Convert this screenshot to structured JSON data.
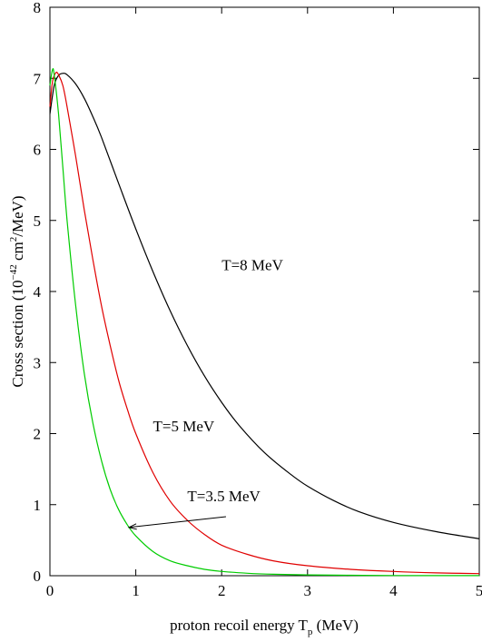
{
  "chart_data": {
    "type": "line",
    "xlabel": "proton recoil energy T",
    "xlabel_sub": "p",
    "xlabel_unit": "(MeV)",
    "ylabel": "Cross section (10",
    "ylabel_exp1": "−42",
    "ylabel_mid": " cm",
    "ylabel_exp2": "2",
    "ylabel_unit": "/MeV)",
    "xlim": [
      0,
      5
    ],
    "ylim": [
      0,
      8
    ],
    "xticks": [
      "0",
      "1",
      "2",
      "3",
      "4",
      "5"
    ],
    "yticks": [
      "0",
      "1",
      "2",
      "3",
      "4",
      "5",
      "6",
      "7",
      "8"
    ],
    "grid": false,
    "annotations": [
      {
        "text": "T=8 MeV",
        "series": 0
      },
      {
        "text": "T=5 MeV",
        "series": 1
      },
      {
        "text": "T=3.5 MeV",
        "series": 2,
        "arrow_to": [
          0.92,
          0.68
        ]
      }
    ],
    "series": [
      {
        "color": "#000000",
        "x": [
          0.0,
          0.05,
          0.1,
          0.15,
          0.2,
          0.3,
          0.4,
          0.5,
          0.6,
          0.8,
          1.0,
          1.2,
          1.4,
          1.6,
          1.8,
          2.0,
          2.2,
          2.5,
          2.8,
          3.0,
          3.3,
          3.6,
          4.0,
          4.5,
          5.0
        ],
        "y": [
          6.5,
          6.9,
          7.04,
          7.07,
          7.05,
          6.92,
          6.72,
          6.46,
          6.17,
          5.52,
          4.88,
          4.28,
          3.73,
          3.24,
          2.81,
          2.44,
          2.12,
          1.73,
          1.43,
          1.26,
          1.06,
          0.9,
          0.75,
          0.62,
          0.52
        ]
      },
      {
        "color": "#e00000",
        "x": [
          0.0,
          0.03,
          0.07,
          0.1,
          0.15,
          0.2,
          0.3,
          0.4,
          0.5,
          0.6,
          0.7,
          0.8,
          0.9,
          1.0,
          1.2,
          1.4,
          1.6,
          1.8,
          2.0,
          2.3,
          2.6,
          3.0,
          3.5,
          4.0,
          4.5,
          5.0
        ],
        "y": [
          6.6,
          6.95,
          7.08,
          7.05,
          6.9,
          6.6,
          5.9,
          5.15,
          4.45,
          3.8,
          3.25,
          2.75,
          2.35,
          2.0,
          1.45,
          1.05,
          0.78,
          0.58,
          0.43,
          0.3,
          0.21,
          0.14,
          0.09,
          0.06,
          0.04,
          0.03
        ]
      },
      {
        "color": "#00cc00",
        "x": [
          0.0,
          0.03,
          0.05,
          0.1,
          0.15,
          0.2,
          0.3,
          0.4,
          0.5,
          0.6,
          0.7,
          0.8,
          0.9,
          1.0,
          1.2,
          1.4,
          1.6,
          1.8,
          2.0,
          2.3,
          2.6,
          3.0,
          3.5,
          4.0,
          5.0
        ],
        "y": [
          6.9,
          7.12,
          7.05,
          6.5,
          5.75,
          5.0,
          3.8,
          2.85,
          2.15,
          1.62,
          1.22,
          0.93,
          0.72,
          0.56,
          0.34,
          0.21,
          0.14,
          0.09,
          0.06,
          0.035,
          0.02,
          0.012,
          0.006,
          0.003,
          0.001
        ]
      }
    ]
  }
}
